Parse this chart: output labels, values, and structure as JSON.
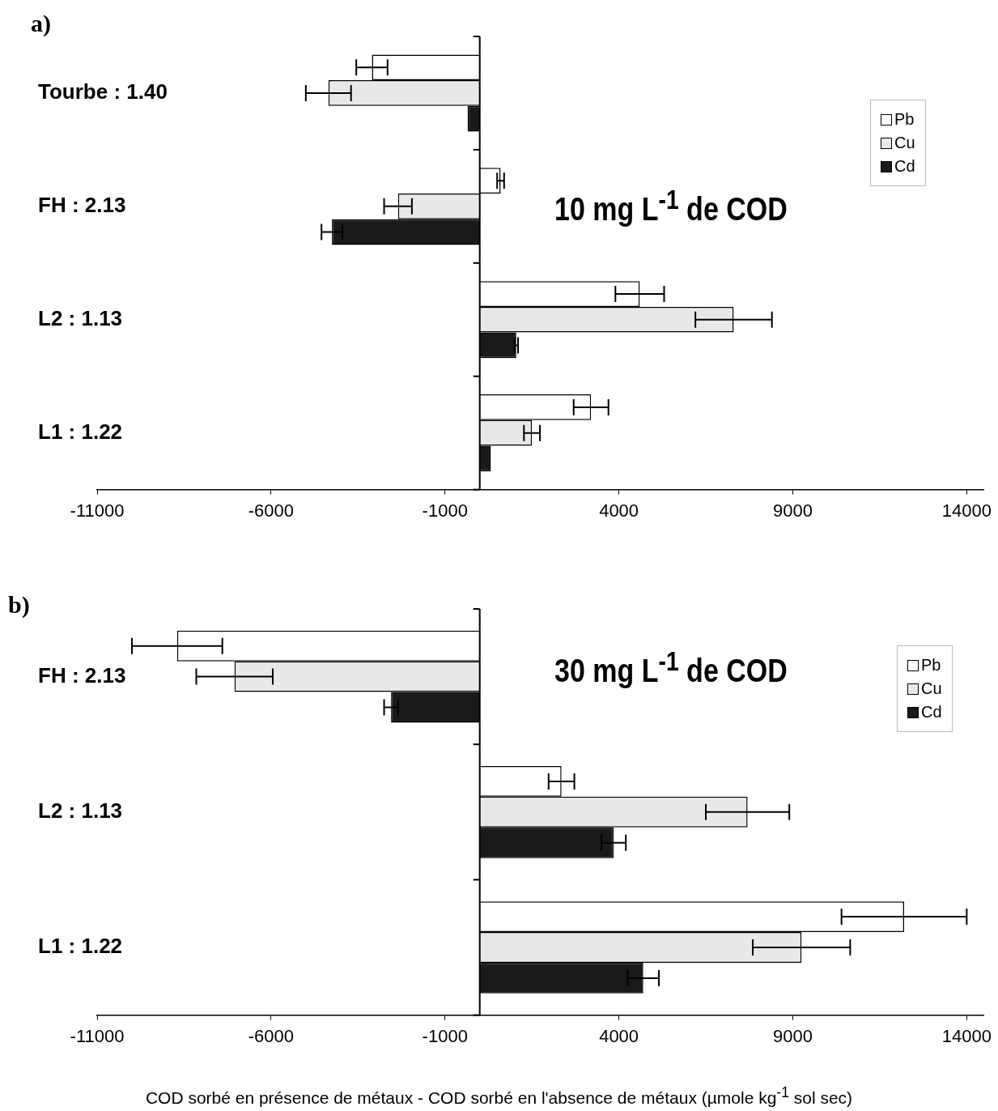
{
  "chart_data": [
    {
      "type": "bar",
      "orientation": "horizontal",
      "title": "10 mg L$^{-1}$ de COD",
      "annotations": [
        "a)"
      ],
      "categories": [
        "Tourbe : 1.40",
        "FH : 2.13",
        "L2 : 1.13",
        "L1 : 1.22"
      ],
      "series": [
        {
          "name": "Pb",
          "color": "#ffffff",
          "values": [
            -3100,
            600,
            4600,
            3200
          ],
          "errors": [
            450,
            100,
            700,
            500
          ]
        },
        {
          "name": "Cu",
          "color": "#e8e8e8",
          "values": [
            -4350,
            -2350,
            7300,
            1500
          ],
          "errors": [
            650,
            400,
            1100,
            230
          ]
        },
        {
          "name": "Cd",
          "color": "#1a1a1a",
          "values": [
            -350,
            -4250,
            1050,
            320
          ],
          "errors": [
            null,
            300,
            50,
            null
          ]
        }
      ],
      "xlim": [
        -11000,
        14500
      ],
      "xticks": [
        -11000,
        -6000,
        -1000,
        4000,
        9000,
        14000
      ],
      "grid": false,
      "legend": "top right"
    },
    {
      "type": "bar",
      "orientation": "horizontal",
      "title": "30 mg L$^{-1}$ de COD",
      "annotations": [
        "b)"
      ],
      "xlabel": "COD sorbé en présence de métaux - COD sorbé en l'absence de métaux  (µmole kg$^{-1}$ sol sec)",
      "categories": [
        "FH : 2.13",
        "L2 : 1.13",
        "L1 : 1.22"
      ],
      "series": [
        {
          "name": "Pb",
          "color": "#ffffff",
          "values": [
            -8700,
            2350,
            12200
          ],
          "errors": [
            1300,
            370,
            1800
          ]
        },
        {
          "name": "Cu",
          "color": "#e8e8e8",
          "values": [
            -7050,
            7700,
            9250
          ],
          "errors": [
            1100,
            1200,
            1400
          ]
        },
        {
          "name": "Cd",
          "color": "#1a1a1a",
          "values": [
            -2550,
            3850,
            4700
          ],
          "errors": [
            200,
            350,
            450
          ]
        }
      ],
      "xlim": [
        -11000,
        14500
      ],
      "xticks": [
        -11000,
        -6000,
        -1000,
        4000,
        9000,
        14000
      ],
      "grid": false,
      "legend": "top right"
    }
  ]
}
